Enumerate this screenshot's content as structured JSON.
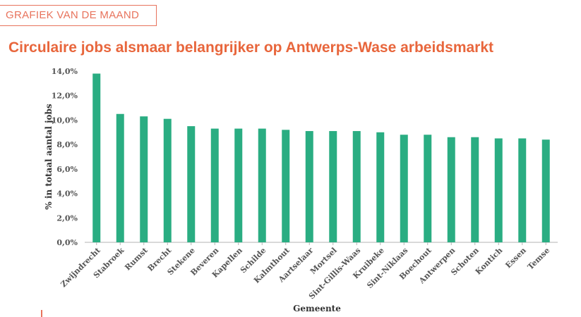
{
  "header": {
    "tag": "GRAFIEK VAN DE MAAND",
    "title": "Circulaire jobs alsmaar belangrijker op Antwerps-Wase arbeidsmarkt"
  },
  "colors": {
    "accent": "#e8663c",
    "bar": "#2aad82",
    "axis": "#b3b3b3"
  },
  "chart_data": {
    "type": "bar",
    "title": "Circulaire jobs alsmaar belangrijker op Antwerps-Wase arbeidsmarkt",
    "xlabel": "Gemeente",
    "ylabel": "% in totaal aantal jobs",
    "ylim": [
      0,
      14
    ],
    "yticks": [
      "0,0%",
      "2,0%",
      "4,0%",
      "6,0%",
      "8,0%",
      "10,0%",
      "12,0%",
      "14,0%"
    ],
    "grid": false,
    "categories": [
      "Zwijndrecht",
      "Stabroek",
      "Rumst",
      "Brecht",
      "Stekene",
      "Beveren",
      "Kapellen",
      "Schilde",
      "Kalmthout",
      "Aartselaar",
      "Mortsel",
      "Sint-Gillis-Waas",
      "Kruibeke",
      "Sint-Niklaas",
      "Boechout",
      "Antwerpen",
      "Schoten",
      "Kontich",
      "Essen",
      "Temse"
    ],
    "values": [
      13.8,
      10.5,
      10.3,
      10.1,
      9.5,
      9.3,
      9.3,
      9.3,
      9.2,
      9.1,
      9.1,
      9.1,
      9.0,
      8.8,
      8.8,
      8.6,
      8.6,
      8.5,
      8.5,
      8.4
    ]
  }
}
